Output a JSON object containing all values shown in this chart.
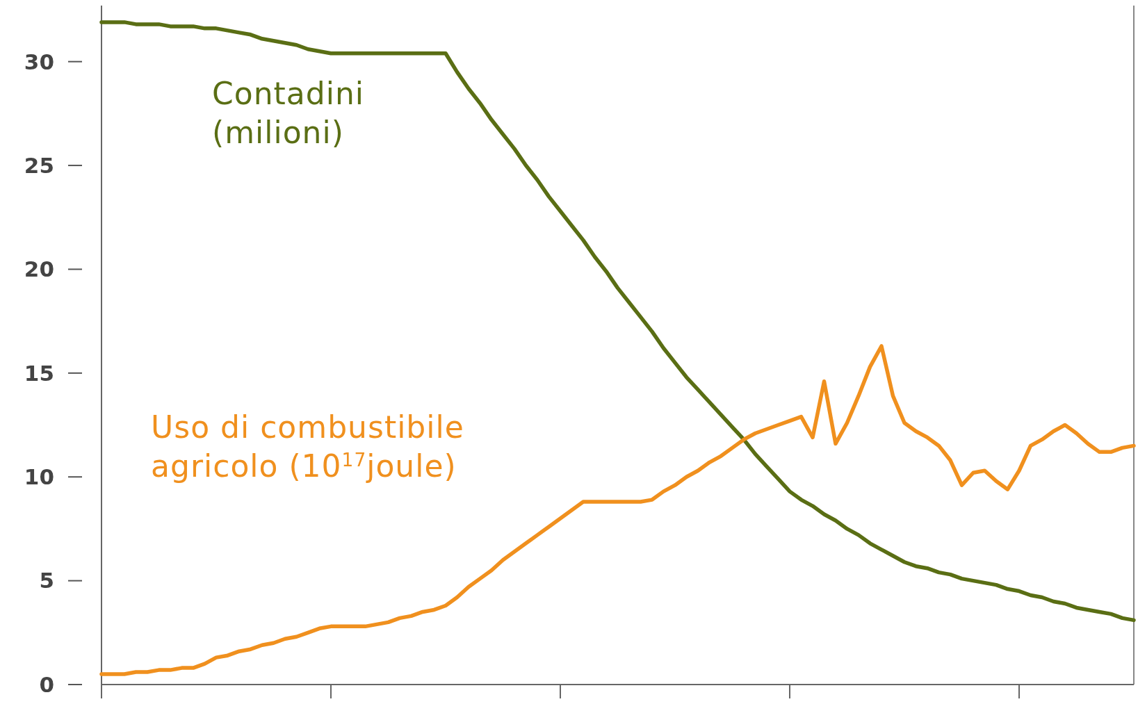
{
  "chart_data": {
    "type": "line",
    "categories": [
      null,
      null,
      null,
      null,
      null,
      null,
      null,
      null,
      null,
      null,
      null,
      null,
      null,
      null,
      null,
      null,
      null,
      null,
      null,
      null,
      null,
      null,
      null,
      null,
      null,
      null,
      null,
      null,
      null,
      null,
      null,
      null,
      null,
      null,
      null,
      null,
      null,
      null,
      null,
      null,
      null,
      null,
      null,
      null,
      null,
      null,
      null,
      null,
      null,
      null,
      null,
      null,
      null,
      null,
      null,
      null,
      null,
      null,
      null,
      null,
      null,
      null,
      null,
      null,
      null,
      null,
      null,
      null,
      null,
      null,
      null,
      null,
      null,
      null,
      null,
      null,
      null,
      null,
      null,
      null,
      null,
      null,
      null,
      null,
      null,
      null,
      null,
      null,
      null,
      null,
      null
    ],
    "series": [
      {
        "name": "Contadini\n(milioni)",
        "color": "#5a6e14",
        "values": [
          31.9,
          31.9,
          31.9,
          31.8,
          31.8,
          31.8,
          31.7,
          31.7,
          31.7,
          31.6,
          31.6,
          31.5,
          31.4,
          31.3,
          31.1,
          31.0,
          30.9,
          30.8,
          30.6,
          30.5,
          30.4,
          30.4,
          30.4,
          30.4,
          30.4,
          30.4,
          30.4,
          30.4,
          30.4,
          30.4,
          30.4,
          29.5,
          28.7,
          28.0,
          27.2,
          26.5,
          25.8,
          25.0,
          24.3,
          23.5,
          22.8,
          22.1,
          21.4,
          20.6,
          19.9,
          19.1,
          18.4,
          17.7,
          17.0,
          16.2,
          15.5,
          14.8,
          14.2,
          13.6,
          13.0,
          12.4,
          11.8,
          11.1,
          10.5,
          9.9,
          9.3,
          8.9,
          8.6,
          8.2,
          7.9,
          7.5,
          7.2,
          6.8,
          6.5,
          6.2,
          5.9,
          5.7,
          5.6,
          5.4,
          5.3,
          5.1,
          5.0,
          4.9,
          4.8,
          4.6,
          4.5,
          4.3,
          4.2,
          4.0,
          3.9,
          3.7,
          3.6,
          3.5,
          3.4,
          3.2,
          3.1
        ]
      },
      {
        "name": "Uso di combustibile\nagricolo (10$^{17}$joule)",
        "color": "#f0901e",
        "values": [
          0.5,
          0.5,
          0.5,
          0.6,
          0.6,
          0.7,
          0.7,
          0.8,
          0.8,
          1.0,
          1.3,
          1.4,
          1.6,
          1.7,
          1.9,
          2.0,
          2.2,
          2.3,
          2.5,
          2.7,
          2.8,
          2.8,
          2.8,
          2.8,
          2.9,
          3.0,
          3.2,
          3.3,
          3.5,
          3.6,
          3.8,
          4.2,
          4.7,
          5.1,
          5.5,
          6.0,
          6.4,
          6.8,
          7.2,
          7.6,
          8.0,
          8.4,
          8.8,
          8.8,
          8.8,
          8.8,
          8.8,
          8.8,
          8.9,
          9.3,
          9.6,
          10.0,
          10.3,
          10.7,
          11.0,
          11.4,
          11.8,
          12.1,
          12.3,
          12.5,
          12.7,
          12.9,
          11.9,
          14.6,
          11.6,
          12.6,
          13.9,
          15.3,
          16.3,
          13.9,
          12.6,
          12.2,
          11.9,
          11.5,
          10.8,
          9.6,
          10.2,
          10.3,
          9.8,
          9.4,
          10.3,
          11.5,
          11.8,
          12.2,
          12.5,
          12.1,
          11.6,
          11.2,
          11.2,
          11.4,
          11.5
        ]
      }
    ],
    "ylim": [
      0,
      32.7
    ],
    "yticks": [
      0,
      5,
      10,
      15,
      20,
      25,
      30
    ],
    "tick_labels": "y",
    "line_style": "solid"
  }
}
